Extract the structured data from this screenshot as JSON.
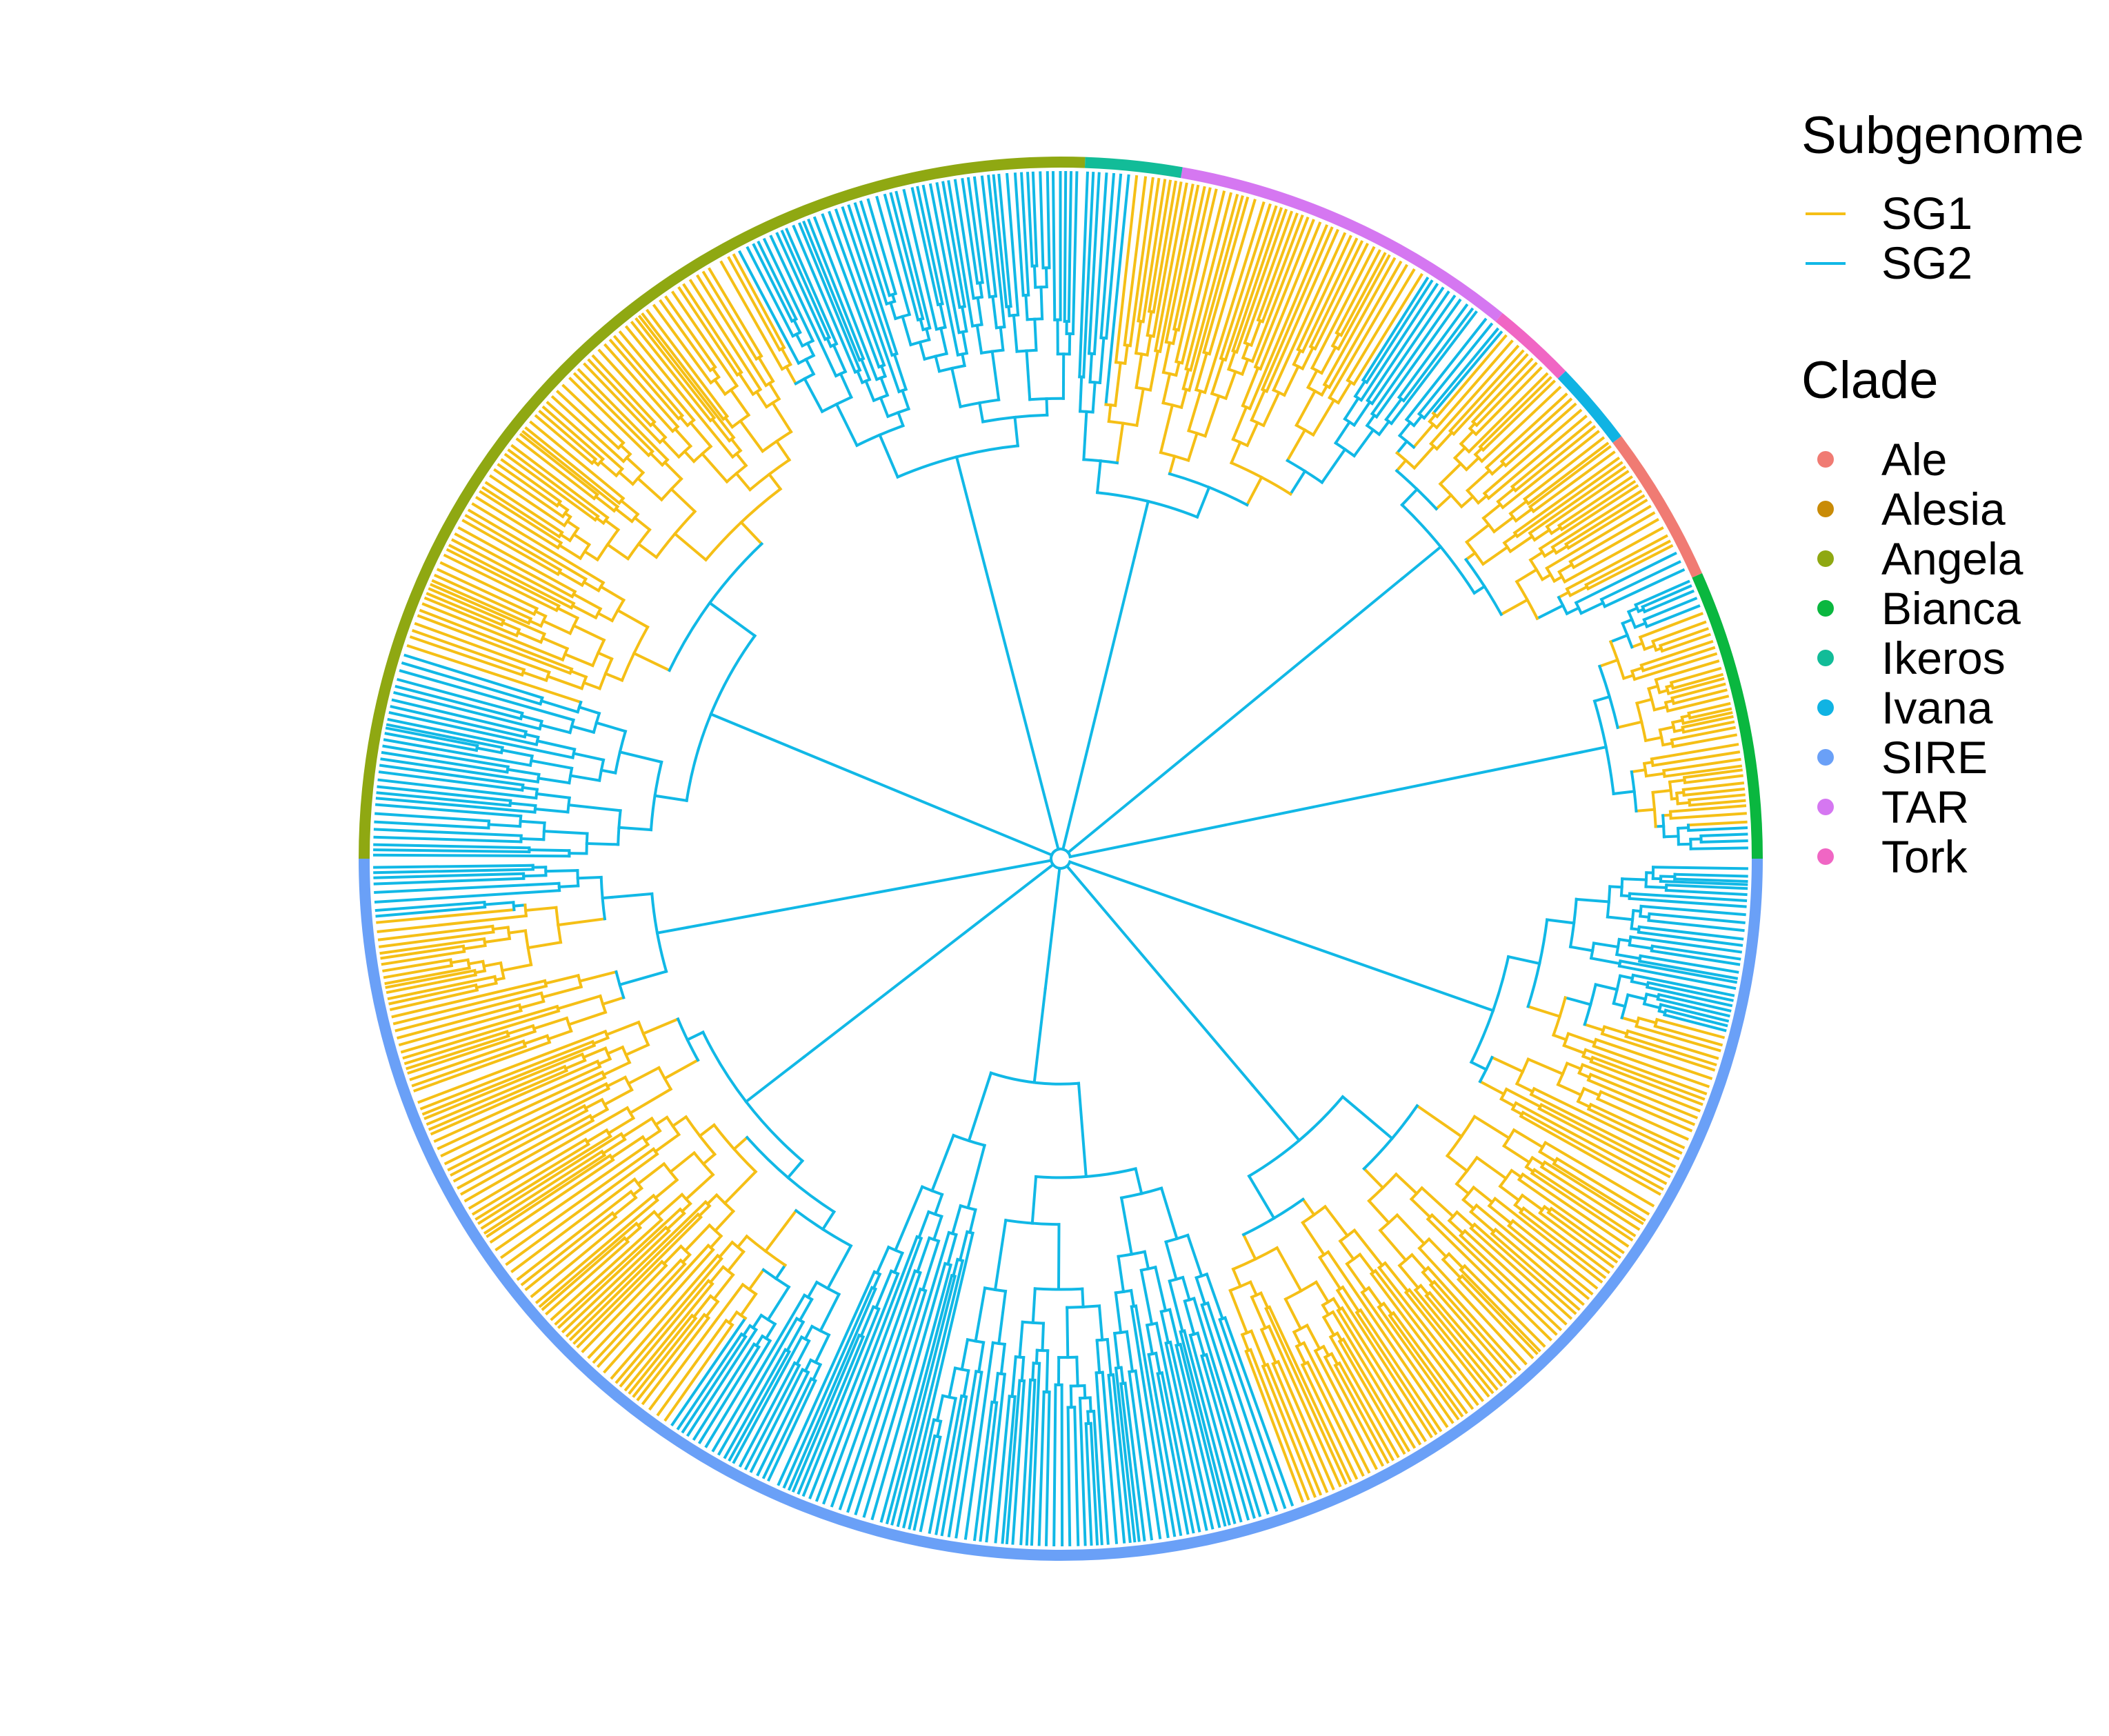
{
  "figure": {
    "type": "circular-phylogenetic-tree",
    "description_free": true
  },
  "subgenome_legend": {
    "title": "Subgenome",
    "items": [
      {
        "label": "SG1",
        "color": "#F5BF16"
      },
      {
        "label": "SG2",
        "color": "#11B8E6"
      }
    ]
  },
  "clade_legend": {
    "title": "Clade",
    "items": [
      {
        "label": "Ale",
        "color": "#F07B73"
      },
      {
        "label": "Alesia",
        "color": "#C98B07"
      },
      {
        "label": "Angela",
        "color": "#8FA812"
      },
      {
        "label": "Bianca",
        "color": "#0AB73F"
      },
      {
        "label": "Ikeros",
        "color": "#12BC98"
      },
      {
        "label": "Ivana",
        "color": "#10B3E3"
      },
      {
        "label": "SIRE",
        "color": "#6AA0F7"
      },
      {
        "label": "TAR",
        "color": "#D577F1"
      },
      {
        "label": "Tork",
        "color": "#F066C4"
      }
    ]
  },
  "clade_ring": [
    {
      "clade": "Bianca",
      "start_deg": 0,
      "end_deg": 24
    },
    {
      "clade": "Ale",
      "start_deg": 24,
      "end_deg": 37
    },
    {
      "clade": "Ivana",
      "start_deg": 37,
      "end_deg": 44
    },
    {
      "clade": "Tork",
      "start_deg": 44,
      "end_deg": 51
    },
    {
      "clade": "TAR",
      "start_deg": 51,
      "end_deg": 80
    },
    {
      "clade": "Ikeros",
      "start_deg": 80,
      "end_deg": 88
    },
    {
      "clade": "Angela",
      "start_deg": 88,
      "end_deg": 180
    },
    {
      "clade": "SIRE",
      "start_deg": 180,
      "end_deg": 360
    }
  ],
  "sg1_arcs": [
    {
      "start_deg": 3,
      "end_deg": 21
    },
    {
      "start_deg": 27,
      "end_deg": 50
    },
    {
      "start_deg": 58,
      "end_deg": 84
    },
    {
      "start_deg": 118,
      "end_deg": 162
    },
    {
      "start_deg": 185,
      "end_deg": 235
    },
    {
      "start_deg": 290,
      "end_deg": 345
    }
  ]
}
